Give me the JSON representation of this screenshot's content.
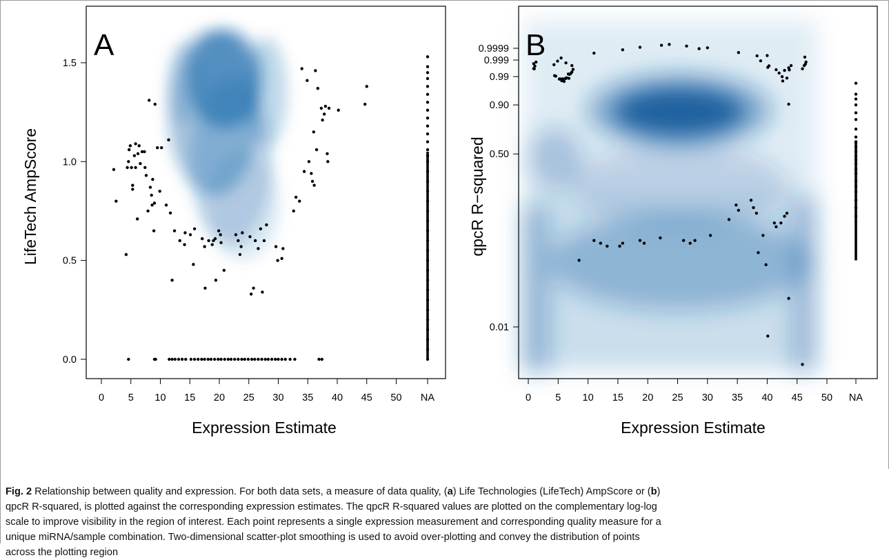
{
  "chart_data": [
    {
      "type": "scatter",
      "panel_letter": "A",
      "xlabel": "Expression Estimate",
      "ylabel": "LifeTech AmpScore",
      "x_ticks": [
        "0",
        "5",
        "10",
        "15",
        "20",
        "25",
        "30",
        "35",
        "40",
        "45",
        "50",
        "NA"
      ],
      "y_ticks": [
        "0.0",
        "0.5",
        "1.0",
        "1.5"
      ],
      "xlim": [
        -2,
        54
      ],
      "ylim": [
        -0.05,
        1.62
      ],
      "density_blobs": [
        {
          "x": 21,
          "y": 1.42,
          "sx": 4.5,
          "sy": 0.18,
          "w": 1.0
        },
        {
          "x": 19,
          "y": 1.25,
          "sx": 5.5,
          "sy": 0.3,
          "w": 0.7
        },
        {
          "x": 22,
          "y": 1.0,
          "sx": 5.0,
          "sy": 0.3,
          "w": 0.45
        },
        {
          "x": 24,
          "y": 0.78,
          "sx": 4.5,
          "sy": 0.2,
          "w": 0.25
        },
        {
          "x": 14,
          "y": 1.4,
          "sx": 2.0,
          "sy": 0.15,
          "w": 0.35
        },
        {
          "x": 28,
          "y": 1.35,
          "sx": 2.5,
          "sy": 0.2,
          "w": 0.45
        }
      ],
      "points": [
        [
          2.1,
          0.96
        ],
        [
          2.5,
          0.8
        ],
        [
          4.2,
          0.53
        ],
        [
          4.4,
          0.97
        ],
        [
          4.6,
          1.0
        ],
        [
          4.7,
          1.06
        ],
        [
          4.9,
          1.08
        ],
        [
          5.1,
          0.97
        ],
        [
          5.3,
          0.86
        ],
        [
          5.3,
          0.88
        ],
        [
          5.6,
          1.03
        ],
        [
          5.8,
          1.09
        ],
        [
          5.8,
          0.97
        ],
        [
          6.1,
          0.71
        ],
        [
          6.2,
          1.04
        ],
        [
          6.4,
          1.08
        ],
        [
          6.6,
          0.99
        ],
        [
          6.9,
          1.05
        ],
        [
          7.3,
          1.05
        ],
        [
          7.4,
          0.97
        ],
        [
          7.6,
          0.93
        ],
        [
          7.9,
          0.75
        ],
        [
          8.1,
          1.31
        ],
        [
          8.3,
          0.87
        ],
        [
          8.5,
          0.83
        ],
        [
          8.6,
          0.78
        ],
        [
          8.7,
          0.91
        ],
        [
          8.9,
          0.65
        ],
        [
          9.0,
          0.79
        ],
        [
          9.1,
          1.29
        ],
        [
          9.5,
          1.07
        ],
        [
          9.9,
          0.85
        ],
        [
          10.2,
          1.07
        ],
        [
          11.0,
          0.78
        ],
        [
          11.4,
          1.11
        ],
        [
          11.7,
          0.74
        ],
        [
          12.0,
          0.4
        ],
        [
          12.4,
          0.65
        ],
        [
          13.3,
          0.6
        ],
        [
          14.1,
          0.58
        ],
        [
          14.2,
          0.64
        ],
        [
          15.1,
          0.63
        ],
        [
          15.6,
          0.48
        ],
        [
          15.8,
          0.66
        ],
        [
          17.1,
          0.61
        ],
        [
          17.5,
          0.57
        ],
        [
          17.6,
          0.36
        ],
        [
          18.2,
          0.6
        ],
        [
          18.8,
          0.58
        ],
        [
          19.0,
          0.6
        ],
        [
          19.3,
          0.61
        ],
        [
          19.4,
          0.4
        ],
        [
          19.9,
          0.65
        ],
        [
          20.2,
          0.63
        ],
        [
          20.3,
          0.59
        ],
        [
          20.8,
          0.45
        ],
        [
          22.8,
          0.63
        ],
        [
          23.2,
          0.6
        ],
        [
          23.5,
          0.53
        ],
        [
          23.7,
          0.57
        ],
        [
          23.9,
          0.64
        ],
        [
          25.2,
          0.62
        ],
        [
          25.4,
          0.33
        ],
        [
          25.8,
          0.36
        ],
        [
          26.1,
          0.6
        ],
        [
          26.6,
          0.56
        ],
        [
          27.0,
          0.66
        ],
        [
          27.3,
          0.34
        ],
        [
          27.6,
          0.6
        ],
        [
          28.0,
          0.68
        ],
        [
          29.6,
          0.57
        ],
        [
          29.9,
          0.5
        ],
        [
          30.6,
          0.51
        ],
        [
          30.8,
          0.56
        ],
        [
          32.6,
          0.75
        ],
        [
          33.0,
          0.82
        ],
        [
          33.6,
          0.8
        ],
        [
          34.0,
          1.47
        ],
        [
          34.4,
          0.95
        ],
        [
          34.9,
          1.41
        ],
        [
          35.2,
          1.0
        ],
        [
          35.6,
          0.94
        ],
        [
          35.8,
          0.9
        ],
        [
          36.0,
          1.15
        ],
        [
          36.1,
          0.88
        ],
        [
          36.3,
          1.46
        ],
        [
          36.5,
          1.06
        ],
        [
          36.7,
          1.37
        ],
        [
          37.3,
          1.27
        ],
        [
          37.5,
          1.21
        ],
        [
          37.8,
          1.24
        ],
        [
          38.0,
          1.28
        ],
        [
          38.3,
          1.04
        ],
        [
          38.4,
          1.0
        ],
        [
          38.6,
          1.27
        ],
        [
          40.2,
          1.26
        ],
        [
          44.7,
          1.29
        ],
        [
          45.0,
          1.38
        ]
      ],
      "zero_points_x": [
        4.6,
        9.0,
        9.2,
        11.5,
        12.0,
        12.5,
        13.1,
        13.7,
        14.3,
        15.2,
        15.8,
        16.4,
        17.0,
        17.5,
        18.1,
        18.6,
        19.2,
        19.8,
        20.3,
        20.9,
        21.5,
        22.0,
        22.6,
        23.2,
        23.8,
        24.3,
        24.9,
        25.5,
        26.0,
        26.6,
        27.2,
        27.8,
        28.3,
        28.9,
        29.5,
        30.0,
        30.6,
        31.2,
        32.0,
        32.8,
        36.9,
        37.4
      ],
      "na_points_y": [
        0.0,
        0.05,
        0.1,
        0.15,
        0.2,
        0.25,
        0.3,
        0.35,
        0.4,
        0.45,
        0.5,
        0.55,
        0.6,
        0.65,
        0.7,
        0.75,
        0.8,
        0.85,
        0.9,
        0.95,
        1.0,
        1.03,
        1.06,
        1.1,
        1.14,
        1.18,
        1.22,
        1.26,
        1.3,
        1.34,
        1.38,
        1.42,
        1.45,
        1.48,
        1.53
      ]
    },
    {
      "type": "scatter",
      "panel_letter": "B",
      "xlabel": "Expression Estimate",
      "ylabel": "qpcR R−squared",
      "x_ticks": [
        "0",
        "5",
        "10",
        "15",
        "20",
        "25",
        "30",
        "35",
        "40",
        "45",
        "50",
        "NA"
      ],
      "y_ticks": [
        "0.01",
        "0.50",
        "0.90",
        "0.99",
        "0.999",
        "0.9999"
      ],
      "y_scale": "complementary log-log",
      "xlim": [
        -1,
        55
      ],
      "density_blobs": [
        {
          "x": 25,
          "y": 0.9985,
          "sx": 4.5,
          "sy": 0.0006,
          "w": 1.0
        },
        {
          "x": 24,
          "y": 0.985,
          "sx": 8.0,
          "sy": 0.01,
          "w": 0.4
        },
        {
          "x": 25,
          "y": 0.6,
          "sx": 12.0,
          "sy": 0.25,
          "w": 0.45
        },
        {
          "x": 1,
          "y": 0.5,
          "sx": 1.5,
          "sy": 0.3,
          "w": 0.45
        },
        {
          "x": 46,
          "y": 0.7,
          "sx": 1.5,
          "sy": 0.3,
          "w": 0.4
        }
      ],
      "points": [
        [
          0.9,
          0.9982
        ],
        [
          1.0,
          0.9962
        ],
        [
          0.9,
          0.9963
        ],
        [
          1.1,
          0.9974
        ],
        [
          1.3,
          0.9986
        ],
        [
          4.4,
          0.991
        ],
        [
          4.6,
          0.9905
        ],
        [
          5.2,
          0.9868
        ],
        [
          5.3,
          0.9872
        ],
        [
          5.6,
          0.9844
        ],
        [
          5.7,
          0.9871
        ],
        [
          5.8,
          0.9871
        ],
        [
          6.0,
          0.9833
        ],
        [
          6.2,
          0.9877
        ],
        [
          6.3,
          0.9878
        ],
        [
          6.4,
          0.9886
        ],
        [
          6.7,
          0.9926
        ],
        [
          6.8,
          0.9879
        ],
        [
          6.9,
          0.9923
        ],
        [
          7.1,
          0.993
        ],
        [
          7.3,
          0.9942
        ],
        [
          7.5,
          0.9959
        ],
        [
          4.3,
          0.9979
        ],
        [
          4.9,
          0.9988
        ],
        [
          5.5,
          0.9993
        ],
        [
          6.3,
          0.9984
        ],
        [
          7.3,
          0.9976
        ],
        [
          11.0,
          0.99972
        ],
        [
          15.8,
          0.99986
        ],
        [
          18.7,
          0.99992
        ],
        [
          22.3,
          0.99995
        ],
        [
          23.6,
          0.99996
        ],
        [
          26.5,
          0.99994
        ],
        [
          28.6,
          0.99989
        ],
        [
          30.0,
          0.99991
        ],
        [
          35.2,
          0.99975
        ],
        [
          38.3,
          0.99953
        ],
        [
          38.9,
          0.99885
        ],
        [
          40.0,
          0.99955
        ],
        [
          40.1,
          0.9969
        ],
        [
          40.3,
          0.9975
        ],
        [
          41.5,
          0.9957
        ],
        [
          42.0,
          0.9934
        ],
        [
          42.5,
          0.9899
        ],
        [
          42.9,
          0.9953
        ],
        [
          43.3,
          0.9882
        ],
        [
          43.7,
          0.9956
        ],
        [
          43.6,
          0.9967
        ],
        [
          44.0,
          0.9976
        ],
        [
          45.9,
          0.9962
        ],
        [
          46.2,
          0.9976
        ],
        [
          46.4,
          0.9981
        ],
        [
          46.5,
          0.9986
        ],
        [
          46.3,
          0.9994
        ],
        [
          43.6,
          0.904
        ],
        [
          42.6,
          0.984
        ],
        [
          8.5,
          0.05
        ],
        [
          11.0,
          0.08
        ],
        [
          12.1,
          0.075
        ],
        [
          13.2,
          0.07
        ],
        [
          15.3,
          0.07
        ],
        [
          15.8,
          0.075
        ],
        [
          18.7,
          0.08
        ],
        [
          19.4,
          0.075
        ],
        [
          22.1,
          0.085
        ],
        [
          26.0,
          0.08
        ],
        [
          27.1,
          0.075
        ],
        [
          27.9,
          0.08
        ],
        [
          30.5,
          0.09
        ],
        [
          33.6,
          0.13
        ],
        [
          34.8,
          0.18
        ],
        [
          35.2,
          0.16
        ],
        [
          37.3,
          0.2
        ],
        [
          37.7,
          0.17
        ],
        [
          38.2,
          0.15
        ],
        [
          38.5,
          0.06
        ],
        [
          39.3,
          0.09
        ],
        [
          39.8,
          0.045
        ],
        [
          41.2,
          0.12
        ],
        [
          41.5,
          0.11
        ],
        [
          42.3,
          0.12
        ],
        [
          42.9,
          0.14
        ],
        [
          43.3,
          0.15
        ],
        [
          43.6,
          0.02
        ],
        [
          45.9,
          0.004
        ],
        [
          40.1,
          0.008
        ]
      ],
      "na_points_y": [
        0.98,
        0.95,
        0.93,
        0.9,
        0.85,
        0.8,
        0.72,
        0.65,
        0.6,
        0.56,
        0.52,
        0.48,
        0.45,
        0.42,
        0.38,
        0.35,
        0.3,
        0.27,
        0.24,
        0.2,
        0.17,
        0.14
      ]
    }
  ],
  "caption": {
    "label": "Fig. 2",
    "lines": [
      [
        {
          "t": "Fig. 2",
          "b": true
        },
        {
          "t": " Relationship between quality and expression. For both data sets, a measure of data quality, ("
        },
        {
          "t": "a",
          "b": true
        },
        {
          "t": ") Life Technologies (LifeTech) AmpScore or ("
        },
        {
          "t": "b",
          "b": true
        },
        {
          "t": ")"
        }
      ],
      [
        {
          "t": "qpcR R-squared, is plotted against the corresponding expression estimates. The qpcR R-squared values are plotted on the complementary log-log"
        }
      ],
      [
        {
          "t": "scale to improve visibility in the region of interest. Each point represents a single expression measurement and corresponding quality measure for a"
        }
      ],
      [
        {
          "t": "unique miRNA/sample combination. Two-dimensional scatter-plot smoothing is used to avoid over-plotting and convey the distribution of points"
        }
      ],
      [
        {
          "t": "across the plotting region"
        }
      ]
    ]
  }
}
